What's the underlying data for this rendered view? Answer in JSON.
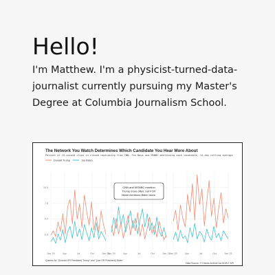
{
  "greeting": "Hello!",
  "bio": "I'm Matthew. I'm a physicist-turned-data-journalist currently pursuing my Master's Degree at Columbia Journalism School.",
  "colors": {
    "trump": "#f08a72",
    "biden": "#3fc2c9",
    "background": "#f6f6f6"
  },
  "figure": {
    "title": "The Network You Watch Determines Which Candidate You Hear More About",
    "subtitle": "Percent of 15-second clips in closed captioning from CNN, Fox News and MSNBC mentioning each candidate, 14-day rolling average",
    "annotation_line1": "CNN and MSNBC mention",
    "annotation_line2": "Trump more often, but FOX",
    "annotation_line3": "News mentions Biden more.",
    "note": "Queries for \"(Donald OR President) Trump\" and \"(Joe OR President) Biden\"",
    "source": "Data Source: TV News Archive via GDELT API"
  },
  "chart_data": {
    "type": "line",
    "title": "The Network You Watch Determines Which Candidate You Hear More About",
    "subtitle": "Percent of 15-second clips in closed captioning from CNN, Fox News and MSNBC mentioning each candidate, 14-day rolling average",
    "legend": [
      "Donald Trump",
      "Joe Biden"
    ],
    "legend_position": "top-left",
    "y_ticks": [
      "10.0",
      "7.5",
      "5.0",
      "2.5"
    ],
    "ylim": [
      0,
      12.5
    ],
    "grid": true,
    "panels": [
      {
        "x_ticks": [
          "Jan '20",
          "Apr",
          "Jul",
          "Oct",
          "Jan '21"
        ],
        "series": [
          {
            "name": "Donald Trump",
            "values": [
              2.4,
              3.1,
              2.2,
              4.5,
              3.0,
              5.8,
              2.6,
              6.9,
              8.1,
              4.2,
              9.6,
              5.0,
              7.4,
              3.6,
              8.8,
              6.1,
              4.0,
              7.7,
              3.2,
              5.4,
              2.8,
              6.3,
              4.1,
              2.5
            ]
          },
          {
            "name": "Joe Biden",
            "values": [
              1.4,
              2.0,
              1.1,
              2.6,
              1.6,
              3.3,
              1.2,
              2.9,
              3.8,
              1.9,
              4.6,
              2.2,
              3.4,
              1.7,
              4.1,
              2.8,
              1.5,
              3.6,
              2.0,
              4.4,
              1.8,
              3.0,
              2.3,
              1.5
            ]
          }
        ]
      },
      {
        "x_ticks": [
          "Jan '20",
          "Apr",
          "Jul",
          "Oct",
          "Jan '21"
        ],
        "series": [
          {
            "name": "Donald Trump",
            "values": [
              3.9,
              2.3,
              5.1,
              2.6,
              4.4,
              1.9,
              3.6,
              5.6,
              2.4,
              4.8,
              3.1,
              6.0,
              2.2,
              4.2,
              1.8,
              3.5,
              5.3,
              2.7,
              3.9,
              2.1,
              4.6,
              2.9,
              1.7,
              2.4
            ]
          },
          {
            "name": "Joe Biden",
            "values": [
              2.8,
              5.2,
              3.4,
              6.9,
              4.1,
              5.7,
              2.9,
              4.6,
              6.3,
              3.5,
              5.1,
              2.6,
              4.9,
              6.6,
              3.7,
              5.8,
              3.1,
              4.4,
              2.5,
              5.3,
              3.0,
              2.2,
              3.6,
              2.0
            ]
          }
        ]
      },
      {
        "x_ticks": [
          "Jan '20",
          "Apr",
          "Jul",
          "Oct",
          "Jan '21"
        ],
        "series": [
          {
            "name": "Donald Trump",
            "values": [
              4.6,
              6.4,
              3.2,
              7.2,
              5.1,
              3.7,
              8.9,
              6.1,
              10.6,
              4.8,
              12.0,
              7.3,
              9.8,
              3.9,
              7.7,
              11.1,
              5.4,
              8.3,
              3.6,
              6.7,
              9.2,
              4.3,
              6.6,
              5.1
            ]
          },
          {
            "name": "Joe Biden",
            "values": [
              1.7,
              2.9,
              1.4,
              3.2,
              1.9,
              2.3,
              1.2,
              3.6,
              2.1,
              4.3,
              1.8,
              3.0,
              2.5,
              1.3,
              3.4,
              2.2,
              1.6,
              3.8,
              2.0,
              2.7,
              1.5,
              3.1,
              2.4,
              1.8
            ]
          }
        ]
      }
    ]
  }
}
